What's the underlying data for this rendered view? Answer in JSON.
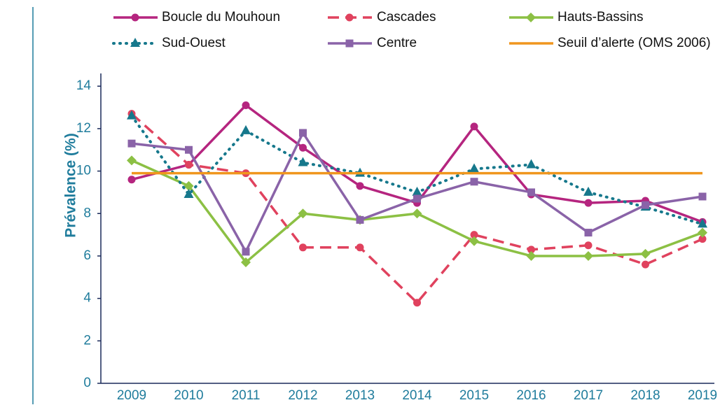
{
  "chart_data": {
    "type": "line",
    "y_label": "Prévalence (%)",
    "categories": [
      "2009",
      "2010",
      "2011",
      "2012",
      "2013",
      "2014",
      "2015",
      "2016",
      "2017",
      "2018",
      "2019"
    ],
    "ylim": [
      0,
      14.6
    ],
    "yticks": [
      0,
      2,
      4,
      6,
      8,
      10,
      12,
      14
    ],
    "series": [
      {
        "name": "Boucle du Mouhoun",
        "color": "#b5257f",
        "marker": "circle",
        "dash": "solid",
        "values": [
          9.6,
          10.3,
          13.1,
          11.1,
          9.3,
          8.5,
          12.1,
          8.9,
          8.5,
          8.6,
          7.6
        ]
      },
      {
        "name": "Cascades",
        "color": "#e0425e",
        "marker": "circle",
        "dash": "dashed",
        "values": [
          12.7,
          10.3,
          9.9,
          6.4,
          6.4,
          3.8,
          7.0,
          6.3,
          6.5,
          5.6,
          6.8
        ]
      },
      {
        "name": "Hauts-Bassins",
        "color": "#8cc044",
        "marker": "diamond",
        "dash": "solid",
        "values": [
          10.5,
          9.3,
          5.7,
          8.0,
          7.7,
          8.0,
          6.7,
          6.0,
          6.0,
          6.1,
          7.1
        ]
      },
      {
        "name": "Sud-Ouest",
        "color": "#16788c",
        "marker": "triangle",
        "dash": "dotted",
        "values": [
          12.6,
          8.9,
          11.9,
          10.4,
          9.9,
          9.0,
          10.1,
          10.3,
          9.0,
          8.3,
          7.5
        ]
      },
      {
        "name": "Centre",
        "color": "#8a63a8",
        "marker": "square",
        "dash": "solid",
        "values": [
          11.3,
          11.0,
          6.2,
          11.8,
          7.7,
          8.7,
          9.5,
          9.0,
          7.1,
          8.4,
          8.8
        ]
      },
      {
        "name": "Seuil d’alerte (OMS 2006)",
        "color": "#f0961e",
        "marker": "none",
        "dash": "solid",
        "values": [
          9.9,
          9.9,
          9.9,
          9.9,
          9.9,
          9.9,
          9.9,
          9.9,
          9.9,
          9.9,
          9.9
        ]
      }
    ]
  }
}
